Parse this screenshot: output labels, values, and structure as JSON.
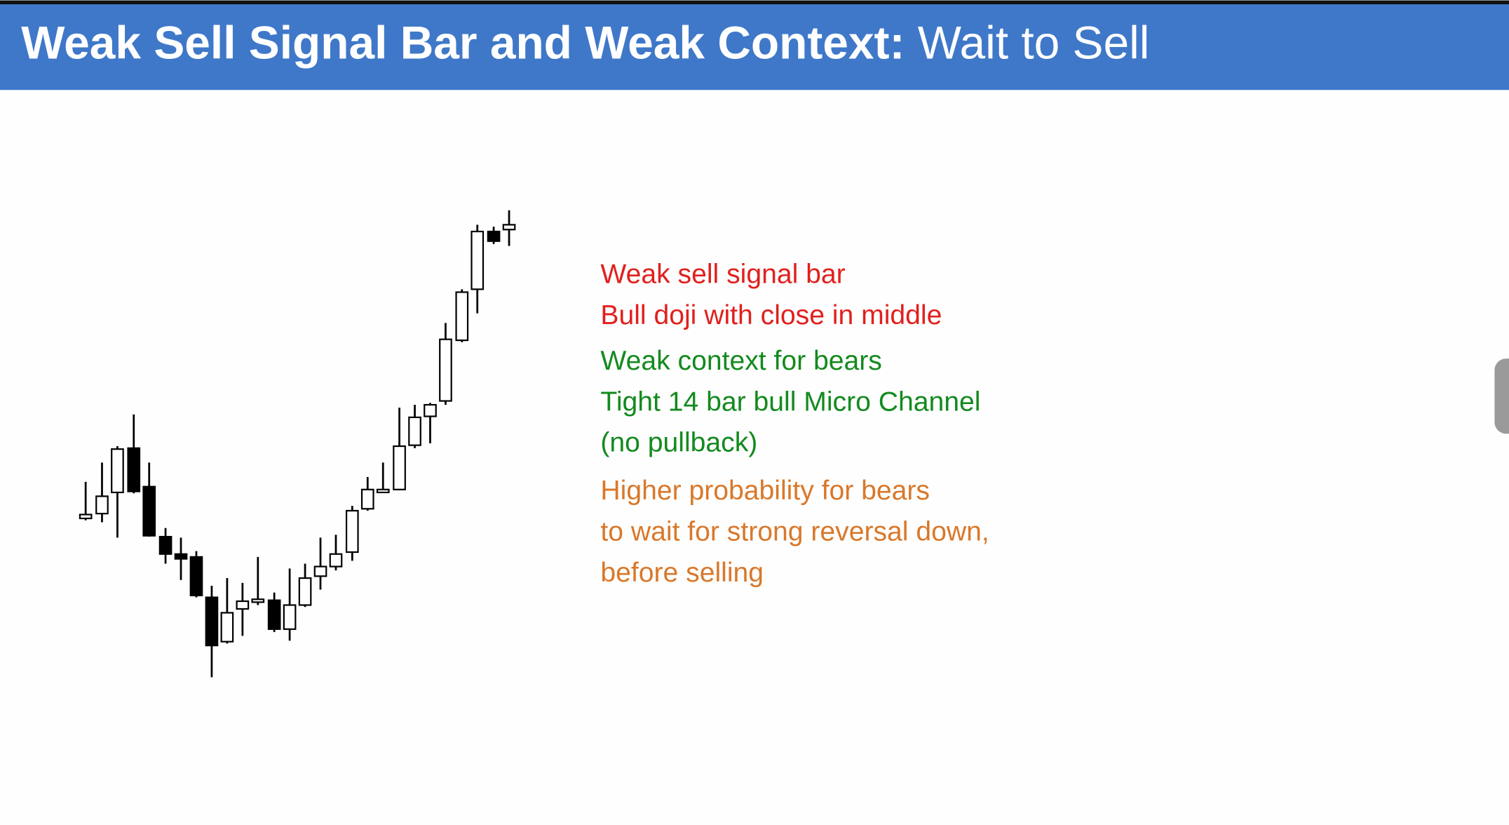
{
  "header": {
    "title_bold": "Weak Sell Signal Bar and Weak Context:",
    "title_rest": "Wait to Sell"
  },
  "notes": [
    {
      "lines": [
        "Weak sell signal bar",
        "Bull doji with close in middle"
      ]
    },
    {
      "lines": [
        "Weak context for bears",
        "Tight 14 bar bull Micro Channel",
        "(no pullback)"
      ]
    },
    {
      "lines": [
        "Higher probability for bears",
        "to wait for strong reversal down,",
        "before selling"
      ]
    }
  ]
}
